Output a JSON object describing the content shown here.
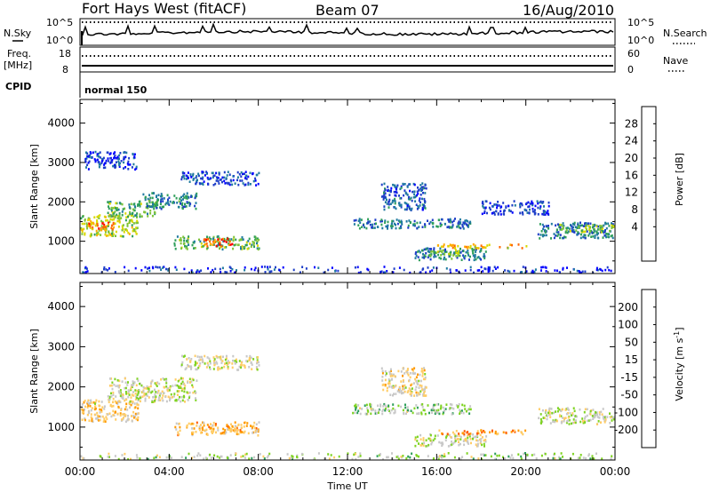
{
  "header": {
    "station": "Fort Hays West (fitACF)",
    "beam": "Beam 07",
    "date": "16/Aug/2010"
  },
  "panels": {
    "nsky_label": "N.Sky",
    "nsky_ticks": [
      "10^5",
      "10^0"
    ],
    "nsearch_label": "N.Search",
    "nsearch_ticks": [
      "10^5",
      "10^0"
    ],
    "freq_label": "Freq.",
    "freq_unit": "[MHz]",
    "freq_ticks": [
      "18",
      "8"
    ],
    "nave_label": "Nave",
    "nave_ticks": [
      "60",
      "0"
    ],
    "cpid_label": "CPID",
    "cpid_value": "normal 150"
  },
  "chart_data": [
    {
      "type": "heatmap",
      "name": "power",
      "ylabel": "Slant Range [km]",
      "ylim": [
        180,
        4600
      ],
      "xlim_hours": [
        0,
        24
      ],
      "yticks": [
        1000,
        2000,
        3000,
        4000
      ],
      "colorbar": {
        "label": "Power [dB]",
        "range": [
          0,
          32
        ],
        "ticks": [
          "28",
          "24",
          "20",
          "16",
          "12",
          "8",
          "4"
        ],
        "colors": [
          "#0000ff",
          "#1e3ec8",
          "#1f7aa0",
          "#2e9e5a",
          "#7ec33a",
          "#d8d800",
          "#ffaa00",
          "#ff6600",
          "#ff0000"
        ]
      },
      "regions": [
        {
          "t0": 0.0,
          "t1": 2.6,
          "r0": 1150,
          "r1": 1700,
          "v": 18
        },
        {
          "t0": 0.3,
          "t1": 1.5,
          "r0": 1300,
          "r1": 1500,
          "v": 26
        },
        {
          "t0": 1.2,
          "t1": 3.5,
          "r0": 1650,
          "r1": 2050,
          "v": 14
        },
        {
          "t0": 2.8,
          "t1": 5.2,
          "r0": 1850,
          "r1": 2250,
          "v": 10
        },
        {
          "t0": 4.5,
          "t1": 8.0,
          "r0": 2450,
          "r1": 2800,
          "v": 6
        },
        {
          "t0": 4.2,
          "t1": 8.0,
          "r0": 820,
          "r1": 1150,
          "v": 14
        },
        {
          "t0": 5.5,
          "t1": 6.8,
          "r0": 880,
          "r1": 1100,
          "v": 26
        },
        {
          "t0": 0.2,
          "t1": 2.5,
          "r0": 2850,
          "r1": 3300,
          "v": 4
        },
        {
          "t0": 12.2,
          "t1": 17.5,
          "r0": 1350,
          "r1": 1600,
          "v": 9
        },
        {
          "t0": 13.5,
          "t1": 15.5,
          "r0": 1800,
          "r1": 2500,
          "v": 7
        },
        {
          "t0": 15.0,
          "t1": 18.2,
          "r0": 550,
          "r1": 850,
          "v": 10
        },
        {
          "t0": 15.5,
          "t1": 17.0,
          "r0": 650,
          "r1": 800,
          "v": 16
        },
        {
          "t0": 16.0,
          "t1": 20.0,
          "r0": 850,
          "r1": 950,
          "v": 22
        },
        {
          "t0": 20.5,
          "t1": 24.0,
          "r0": 1100,
          "r1": 1500,
          "v": 9
        },
        {
          "t0": 21.5,
          "t1": 24.0,
          "r0": 1250,
          "r1": 1450,
          "v": 16
        },
        {
          "t0": 18.0,
          "t1": 21.0,
          "r0": 1700,
          "r1": 2050,
          "v": 5
        },
        {
          "t0": 0.0,
          "t1": 24.0,
          "r0": 180,
          "r1": 380,
          "v": 4
        }
      ]
    },
    {
      "type": "heatmap",
      "name": "velocity",
      "ylabel": "Slant Range [km]",
      "ylim": [
        180,
        4600
      ],
      "xlim_hours": [
        0,
        24
      ],
      "yticks": [
        1000,
        2000,
        3000,
        4000
      ],
      "xticks": [
        "00:00",
        "04:00",
        "08:00",
        "12:00",
        "16:00",
        "20:00",
        "00:00"
      ],
      "xlabel": "Time UT",
      "colorbar": {
        "label": "Velocity [m s-1]",
        "label_unit_prefix": "Velocity [m s",
        "label_exponent": "-1",
        "label_suffix": "]",
        "range": [
          -250,
          250
        ],
        "ticks": [
          "200",
          "100",
          "50",
          "15",
          "-15",
          "-50",
          "-100",
          "-200"
        ],
        "colors": [
          "#ff0000",
          "#ff5a00",
          "#ff9a00",
          "#ffcc66",
          "#c8c8c8",
          "#7ed321",
          "#2e9e5a",
          "#1f4fa0",
          "#0000cc"
        ]
      },
      "regions": [
        {
          "t0": 0.0,
          "t1": 2.6,
          "r0": 1150,
          "r1": 1700,
          "v": -40
        },
        {
          "t0": 1.2,
          "t1": 5.2,
          "r0": 1650,
          "r1": 2250,
          "v": 0
        },
        {
          "t0": 4.2,
          "t1": 8.0,
          "r0": 820,
          "r1": 1150,
          "v": -80
        },
        {
          "t0": 4.5,
          "t1": 8.0,
          "r0": 2450,
          "r1": 2800,
          "v": -10
        },
        {
          "t0": 12.2,
          "t1": 17.5,
          "r0": 1350,
          "r1": 1600,
          "v": 40
        },
        {
          "t0": 13.5,
          "t1": 15.5,
          "r0": 1800,
          "r1": 2500,
          "v": -30
        },
        {
          "t0": 15.0,
          "t1": 18.2,
          "r0": 550,
          "r1": 850,
          "v": 0
        },
        {
          "t0": 16.0,
          "t1": 20.0,
          "r0": 850,
          "r1": 950,
          "v": -120
        },
        {
          "t0": 20.5,
          "t1": 24.0,
          "r0": 1100,
          "r1": 1500,
          "v": 0
        },
        {
          "t0": 0.0,
          "t1": 24.0,
          "r0": 180,
          "r1": 380,
          "v": 30
        }
      ]
    }
  ]
}
